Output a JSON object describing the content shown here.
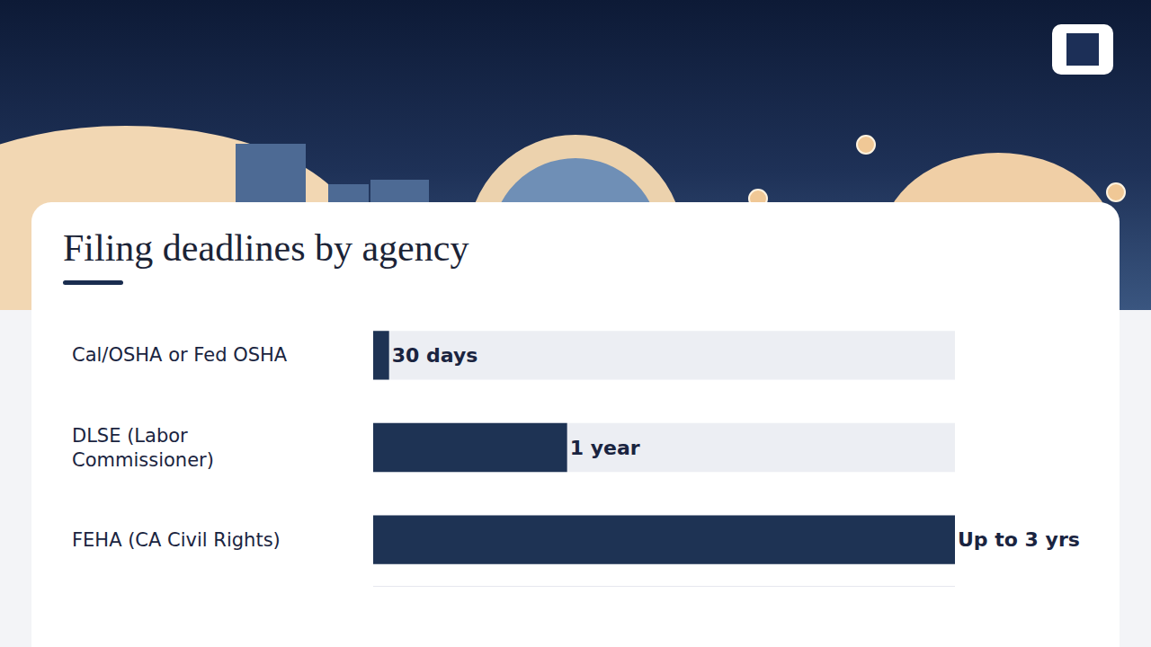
{
  "chart_data": {
    "type": "bar",
    "title": "Filing deadlines by agency",
    "orientation": "horizontal",
    "categories": [
      "Cal/OSHA or Fed OSHA",
      "DLSE (Labor Commissioner)",
      "FEHA (CA Civil Rights)"
    ],
    "values": [
      0.082,
      1,
      3
    ],
    "value_labels": [
      "30 days",
      "1 year",
      "Up to 3 yrs"
    ],
    "xlim": [
      0,
      3
    ],
    "color": "#1e3354",
    "data_labels": true,
    "tick_labels": false,
    "grid": false
  }
}
